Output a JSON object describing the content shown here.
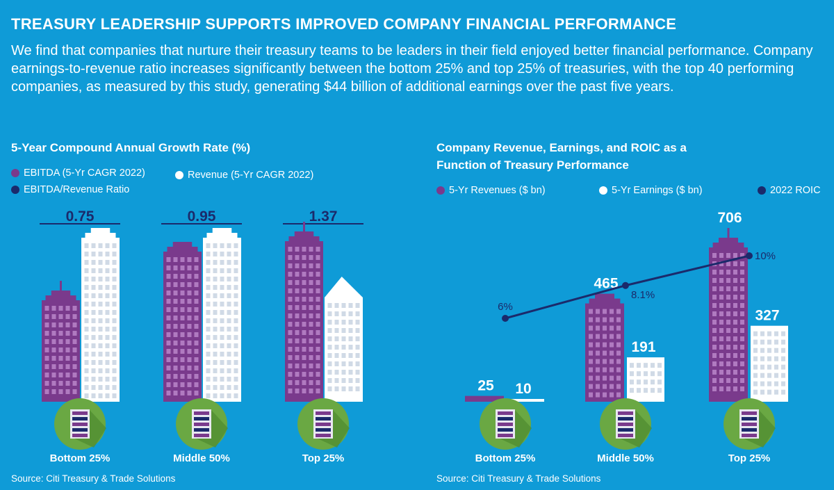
{
  "header": {
    "title": "TREASURY LEADERSHIP SUPPORTS IMPROVED COMPANY FINANCIAL PERFORMANCE",
    "intro": "We find that companies that nurture their treasury teams to be leaders in their field enjoyed better financial performance.  Company earnings-to-revenue ratio increases significantly between the bottom 25% and top 25% of treasuries, with the top 40 performing companies, as measured by this study, generating $44 billion of additional earnings over the past five years."
  },
  "colors": {
    "background": "#0f9bd7",
    "purple": "#7a3a8c",
    "white": "#ffffff",
    "navy": "#1b2a6b",
    "green": "#6aa843"
  },
  "chart_data": [
    {
      "type": "bar",
      "title": "5-Year Compound Annual Growth Rate (%)",
      "categories": [
        "Bottom 25%",
        "Middle 50%",
        "Top 25%"
      ],
      "series": [
        {
          "name": "EBITDA (5-Yr CAGR 2022)",
          "color": "#7a3a8c"
        },
        {
          "name": "Revenue (5-Yr CAGR 2022)",
          "color": "#ffffff"
        },
        {
          "name": "EBITDA/Revenue Ratio",
          "color": "#1b2a6b",
          "values": [
            0.75,
            0.95,
            1.37
          ]
        }
      ],
      "ratio_labels": [
        "0.75",
        "0.95",
        "1.37"
      ],
      "source": "Source: Citi Treasury & Trade Solutions"
    },
    {
      "type": "bar",
      "title": "Company Revenue, Earnings, and ROIC as a Function of Treasury Performance",
      "categories": [
        "Bottom 25%",
        "Middle 50%",
        "Top 25%"
      ],
      "series": [
        {
          "name": "5-Yr Revenues ($ bn)",
          "color": "#7a3a8c",
          "values": [
            25,
            465,
            706
          ]
        },
        {
          "name": "5-Yr Earnings ($ bn)",
          "color": "#ffffff",
          "values": [
            10,
            191,
            327
          ]
        },
        {
          "name": "2022 ROIC",
          "color": "#1b2a6b",
          "type": "line",
          "values": [
            6,
            8.1,
            10
          ],
          "unit": "%"
        }
      ],
      "value_labels": {
        "revenues": [
          "25",
          "465",
          "706"
        ],
        "earnings": [
          "10",
          "191",
          "327"
        ],
        "roic": [
          "6%",
          "8.1%",
          "10%"
        ]
      },
      "source": "Source: Citi Treasury & Trade Solutions"
    }
  ]
}
